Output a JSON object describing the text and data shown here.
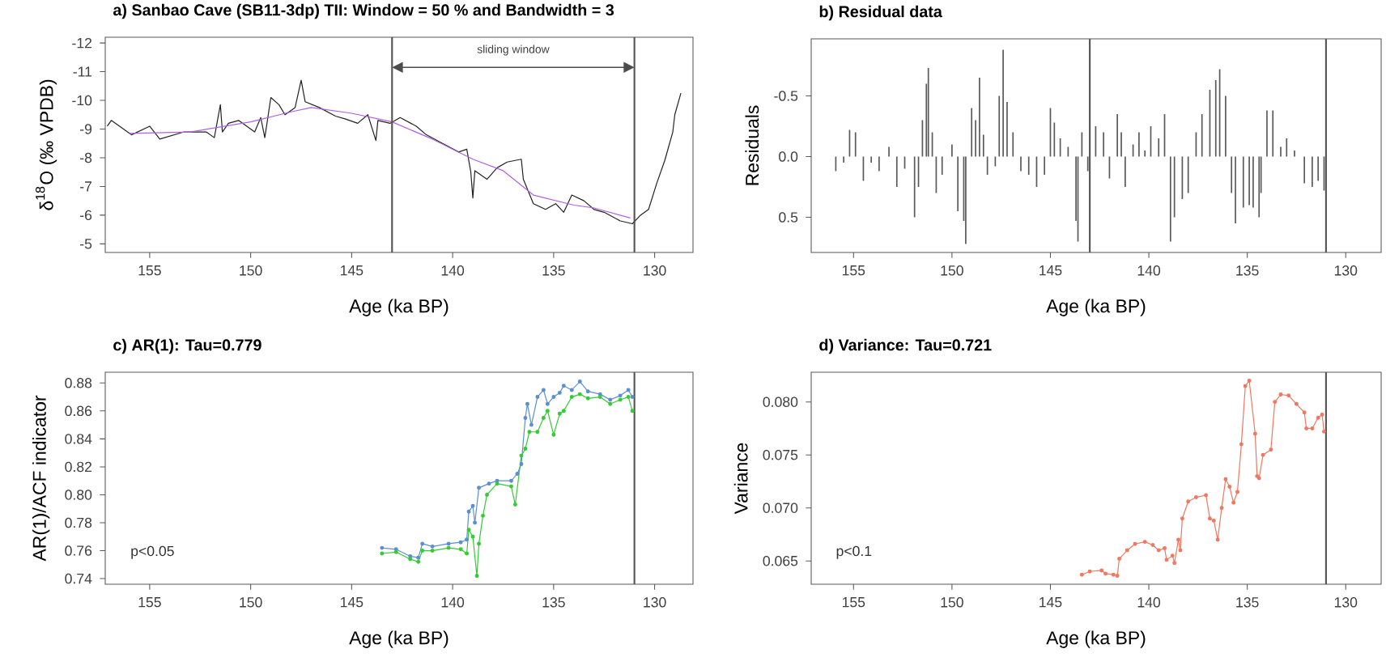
{
  "chart_data": [
    {
      "type": "line",
      "title": "a) Sanbao Cave (SB11-3dp) TII: Window = 50 % and Bandwidth = 3",
      "xlabel": "Age (ka BP)",
      "ylabel": "δ$^{18}$O (‰ VPDB)",
      "xlim": [
        157.2,
        128.1
      ],
      "ylim": [
        -4.7,
        -12.2
      ],
      "xticks": [
        155,
        150,
        145,
        140,
        135,
        130
      ],
      "yticks": [
        -12,
        -11,
        -10,
        -9,
        -8,
        -7,
        -6,
        -5
      ],
      "series": [
        {
          "color": "#222222",
          "x": [
            157.1,
            156.9,
            155.9,
            155,
            154.5,
            153.3,
            152.2,
            151.8,
            151.5,
            151.4,
            151.1,
            150.6,
            149.8,
            149.5,
            149.3,
            149.0,
            148.6,
            148.3,
            147.8,
            147.5,
            147.3,
            146.6,
            145.8,
            145.3,
            144.7,
            144.2,
            143.8,
            143.7,
            143.1,
            142.6,
            141.8,
            141.3,
            140.5,
            139.7,
            139.3,
            139.1,
            139.0,
            138.9,
            138.3,
            137.8,
            137.3,
            136.6,
            136.5,
            136.0,
            135.4,
            134.9,
            134.5,
            134.1,
            133.5,
            133.0,
            132.5,
            131.7,
            131.1,
            130.7,
            130.3,
            129.9,
            129.5,
            129.1,
            129.0,
            128.7
          ],
          "values": [
            -9.1,
            -9.3,
            -8.8,
            -9.1,
            -8.65,
            -8.9,
            -8.9,
            -8.7,
            -9.85,
            -8.9,
            -9.2,
            -9.3,
            -8.9,
            -9.4,
            -8.7,
            -10.1,
            -9.85,
            -9.5,
            -9.75,
            -10.7,
            -9.95,
            -9.75,
            -9.45,
            -9.35,
            -9.2,
            -9.5,
            -8.6,
            -9.3,
            -9.2,
            -9.4,
            -9.1,
            -8.8,
            -8.5,
            -8.2,
            -8.3,
            -7.5,
            -6.6,
            -7.55,
            -7.25,
            -7.65,
            -7.85,
            -7.95,
            -7.25,
            -6.4,
            -6.2,
            -6.4,
            -6.1,
            -6.7,
            -6.5,
            -6.2,
            -6.1,
            -5.8,
            -5.7,
            -6.0,
            -6.2,
            -7.1,
            -7.9,
            -8.9,
            -9.5,
            -10.25
          ]
        },
        {
          "color": "#b060e0",
          "x": [
            156,
            153,
            150,
            148,
            147,
            145,
            143,
            141,
            139,
            137.5,
            136,
            134,
            133,
            131.2
          ],
          "values": [
            -8.85,
            -8.9,
            -9.25,
            -9.6,
            -9.75,
            -9.55,
            -9.25,
            -8.65,
            -7.95,
            -7.55,
            -6.7,
            -6.35,
            -6.25,
            -5.9
          ]
        }
      ],
      "ref_lines": [
        {
          "axis": "x",
          "value": 143,
          "color": "#555555"
        },
        {
          "axis": "x",
          "value": 131,
          "color": "#555555"
        }
      ],
      "annotations": [
        "sliding window"
      ]
    },
    {
      "type": "bar",
      "title": "b) Residual data",
      "xlabel": "Age (ka BP)",
      "ylabel": "Residuals",
      "xlim": [
        157.15,
        128.2
      ],
      "ylim": [
        0.79,
        -0.97
      ],
      "xticks": [
        155,
        150,
        145,
        140,
        135,
        130
      ],
      "yticks": [
        -0.5,
        {
          "value": 0,
          "label": "0.0"
        },
        0.5
      ],
      "x": [
        155.9,
        155.5,
        155.2,
        154.9,
        154.5,
        154.1,
        153.7,
        153.2,
        152.8,
        152.4,
        151.9,
        151.7,
        151.5,
        151.3,
        151.2,
        151.0,
        150.8,
        150.5,
        150.0,
        149.7,
        149.4,
        149.3,
        149.0,
        148.8,
        148.6,
        148.4,
        148.2,
        147.8,
        147.6,
        147.4,
        147.2,
        146.9,
        146.5,
        146.1,
        145.7,
        145.3,
        145.0,
        144.8,
        144.5,
        144.1,
        143.7,
        143.6,
        143.4,
        143.1,
        142.7,
        142.3,
        142.0,
        141.6,
        141.4,
        141.2,
        140.8,
        140.5,
        140.2,
        139.9,
        139.5,
        139.2,
        138.9,
        138.7,
        138.3,
        138.0,
        137.6,
        137.3,
        136.9,
        136.6,
        136.4,
        136.1,
        135.8,
        135.6,
        135.2,
        134.9,
        134.7,
        134.4,
        134.3,
        134.0,
        133.7,
        133.3,
        133.0,
        132.6,
        132.1,
        131.7,
        131.4,
        131.1
      ],
      "values": [
        0.12,
        0.05,
        -0.22,
        -0.2,
        0.2,
        0.05,
        0.12,
        -0.08,
        0.25,
        0.1,
        0.5,
        0.25,
        -0.3,
        -0.6,
        -0.73,
        -0.2,
        0.3,
        0.15,
        -0.1,
        0.45,
        0.53,
        0.72,
        -0.4,
        -0.3,
        -0.65,
        -0.18,
        0.15,
        0.08,
        -0.5,
        -0.88,
        -0.45,
        -0.2,
        0.12,
        0.15,
        0.25,
        0.15,
        -0.4,
        -0.28,
        -0.15,
        -0.08,
        0.53,
        0.7,
        -0.2,
        0.12,
        -0.25,
        -0.2,
        0.18,
        -0.35,
        -0.2,
        0.25,
        -0.1,
        -0.2,
        -0.05,
        -0.25,
        -0.15,
        -0.35,
        0.7,
        0.5,
        0.35,
        0.3,
        -0.2,
        -0.35,
        -0.55,
        -0.63,
        -0.72,
        -0.5,
        0.3,
        0.55,
        0.42,
        0.4,
        0.42,
        0.5,
        0.3,
        -0.38,
        -0.38,
        -0.08,
        -0.15,
        -0.05,
        0.22,
        0.25,
        0.2,
        0.28
      ],
      "color": "#5a5a5a",
      "ref_lines": [
        {
          "axis": "x",
          "value": 143,
          "color": "#555555"
        },
        {
          "axis": "x",
          "value": 131,
          "color": "#555555"
        }
      ]
    },
    {
      "type": "line",
      "title": "c) AR(1): Tau=0.779",
      "xlabel": "Age (ka BP)",
      "ylabel": "AR(1)/ACF indicator",
      "marker": "circle",
      "xlim": [
        157.2,
        128.1
      ],
      "ylim": [
        0.736,
        0.8877
      ],
      "xticks": [
        155,
        150,
        145,
        140,
        135,
        130
      ],
      "yticks": [
        0.74,
        0.76,
        0.78,
        {
          "value": 0.8,
          "label": "0.80"
        },
        0.82,
        0.84,
        0.86,
        0.88
      ],
      "series": [
        {
          "color": "#5b8fd0",
          "x": [
            143.5,
            142.8,
            142.1,
            141.7,
            141.5,
            141.0,
            140.2,
            139.6,
            139.3,
            139.2,
            139.0,
            138.9,
            138.7,
            138.2,
            137.8,
            137.1,
            136.8,
            136.6,
            136.4,
            136.3,
            136.1,
            135.8,
            135.5,
            135.3,
            135.0,
            134.7,
            134.5,
            134.1,
            133.7,
            133.3,
            132.7,
            132.2,
            131.7,
            131.3,
            131.1
          ],
          "values": [
            0.762,
            0.761,
            0.756,
            0.755,
            0.765,
            0.763,
            0.765,
            0.766,
            0.768,
            0.788,
            0.792,
            0.78,
            0.805,
            0.808,
            0.81,
            0.81,
            0.815,
            0.822,
            0.855,
            0.865,
            0.85,
            0.87,
            0.875,
            0.865,
            0.87,
            0.873,
            0.878,
            0.875,
            0.881,
            0.874,
            0.872,
            0.868,
            0.871,
            0.875,
            0.87
          ]
        },
        {
          "color": "#33cc33",
          "x": [
            143.5,
            142.8,
            142.1,
            141.7,
            141.5,
            141.0,
            140.2,
            139.6,
            139.3,
            139.2,
            139.0,
            138.8,
            138.7,
            138.5,
            138.3,
            137.8,
            137.1,
            136.9,
            136.6,
            136.4,
            136.2,
            135.8,
            135.5,
            135.3,
            135.0,
            134.7,
            134.5,
            134.1,
            133.7,
            133.3,
            132.7,
            132.2,
            131.7,
            131.3,
            131.1
          ],
          "values": [
            0.758,
            0.759,
            0.754,
            0.752,
            0.76,
            0.76,
            0.762,
            0.761,
            0.758,
            0.775,
            0.77,
            0.742,
            0.765,
            0.785,
            0.8,
            0.808,
            0.806,
            0.793,
            0.828,
            0.833,
            0.845,
            0.845,
            0.855,
            0.86,
            0.843,
            0.858,
            0.86,
            0.87,
            0.872,
            0.869,
            0.87,
            0.865,
            0.868,
            0.87,
            0.86
          ]
        }
      ],
      "ref_lines": [
        {
          "axis": "x",
          "value": 131,
          "color": "#555555"
        }
      ],
      "annotations": [
        "p<0.05"
      ]
    },
    {
      "type": "line",
      "title": "d) Variance: Tau=0.721",
      "xlabel": "Age (ka BP)",
      "ylabel": "Variance",
      "marker": "circle",
      "xlim": [
        157.15,
        128.2
      ],
      "ylim": [
        0.0628,
        0.0828
      ],
      "xticks": [
        155,
        150,
        145,
        140,
        135,
        130
      ],
      "yticks": [
        0.065,
        {
          "value": 0.07,
          "label": "0.070"
        },
        0.075,
        {
          "value": 0.08,
          "label": "0.080"
        }
      ],
      "series": [
        {
          "color": "#f07860",
          "x": [
            143.4,
            143.0,
            142.4,
            142.2,
            141.8,
            141.6,
            141.5,
            141.1,
            140.7,
            140.2,
            139.8,
            139.5,
            139.2,
            139.1,
            138.8,
            138.7,
            138.5,
            138.4,
            138.3,
            138.0,
            137.6,
            137.1,
            136.9,
            136.7,
            136.5,
            136.3,
            136.1,
            135.9,
            135.7,
            135.5,
            135.3,
            135.1,
            134.9,
            134.6,
            134.5,
            134.4,
            134.2,
            133.8,
            133.6,
            133.3,
            132.9,
            132.5,
            132.1,
            132.0,
            131.7,
            131.4,
            131.2,
            131.1
          ],
          "values": [
            0.0637,
            0.064,
            0.0641,
            0.0638,
            0.0637,
            0.0636,
            0.0652,
            0.066,
            0.0666,
            0.0668,
            0.0665,
            0.066,
            0.0662,
            0.0651,
            0.0655,
            0.0648,
            0.067,
            0.066,
            0.069,
            0.0706,
            0.071,
            0.0712,
            0.069,
            0.0688,
            0.067,
            0.07,
            0.0727,
            0.072,
            0.0705,
            0.0715,
            0.076,
            0.0815,
            0.082,
            0.077,
            0.073,
            0.0728,
            0.075,
            0.0755,
            0.08,
            0.0807,
            0.0806,
            0.0798,
            0.079,
            0.0775,
            0.0775,
            0.0785,
            0.0788,
            0.0772
          ]
        }
      ],
      "ref_lines": [
        {
          "axis": "x",
          "value": 131,
          "color": "#555555"
        }
      ],
      "annotations": [
        "p<0.1"
      ]
    }
  ]
}
